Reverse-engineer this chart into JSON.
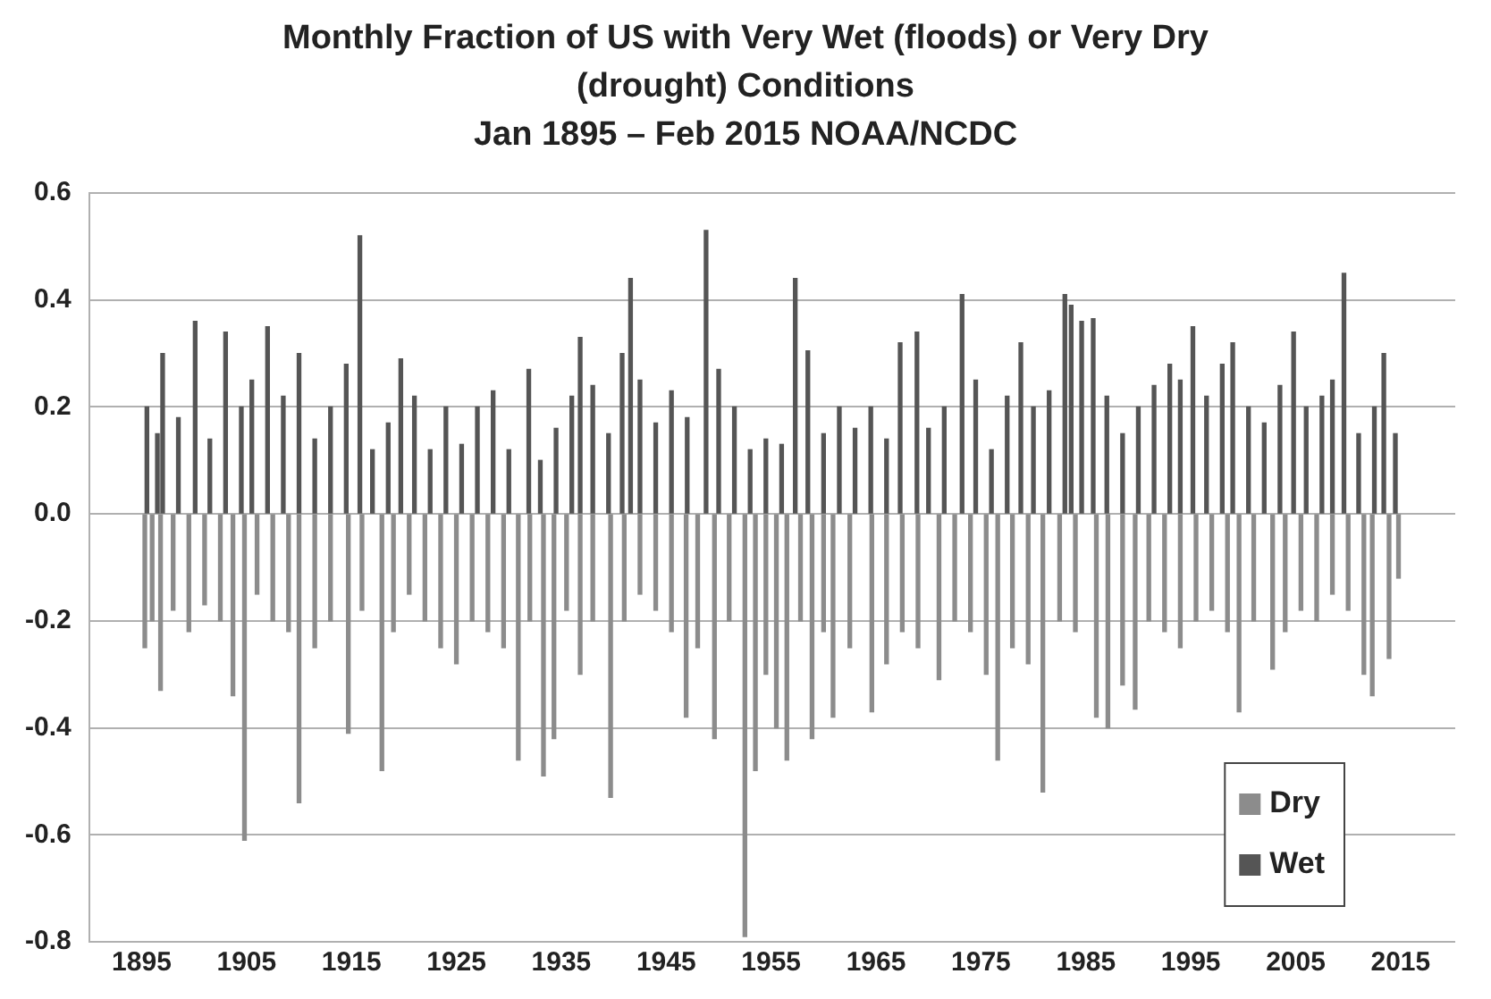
{
  "chart_data": {
    "type": "bar",
    "title": "Monthly Fraction of US with Very Wet (floods) or Very Dry (drought) Conditions",
    "subtitle": "Jan 1895 – Feb 2015 NOAA/NCDC",
    "xlim": [
      1895,
      2015.2
    ],
    "xticks": [
      1895,
      1905,
      1915,
      1925,
      1935,
      1945,
      1955,
      1965,
      1975,
      1985,
      1995,
      2005,
      2015
    ],
    "ylim": [
      -0.8,
      0.6
    ],
    "yticks": [
      {
        "value": -0.8,
        "label": "-0.8"
      },
      {
        "value": -0.6,
        "label": "-0.6"
      },
      {
        "value": -0.4,
        "label": "-0.4"
      },
      {
        "value": -0.2,
        "label": "-0.2"
      },
      {
        "value": 0,
        "label": "0.0"
      },
      {
        "value": 0.2,
        "label": "0.2"
      },
      {
        "value": 0.4,
        "label": "0.4"
      },
      {
        "value": 0.6,
        "label": "0.6"
      }
    ],
    "grid": "y",
    "legend": "bottom right",
    "series": [
      {
        "name": "Dry",
        "color": "#8c8c8c",
        "x": [
          1895.3,
          1896,
          1896.8,
          1898,
          1899.5,
          1901,
          1902.5,
          1903.7,
          1904.8,
          1906,
          1907.5,
          1909,
          1910,
          1911.5,
          1913,
          1914.7,
          1916,
          1917.9,
          1919,
          1920.5,
          1922,
          1923.5,
          1925,
          1926.5,
          1928,
          1929.5,
          1930.9,
          1932,
          1933.3,
          1934.3,
          1935.5,
          1936.8,
          1938,
          1939.7,
          1941,
          1942.5,
          1944,
          1945.5,
          1946.9,
          1948,
          1949.6,
          1951,
          1952.5,
          1953.5,
          1954.5,
          1955.5,
          1956.5,
          1957.8,
          1958.9,
          1960,
          1960.9,
          1962.5,
          1964.6,
          1966,
          1967.5,
          1969,
          1971,
          1972.5,
          1974,
          1975.5,
          1976.6,
          1978,
          1979.5,
          1980.9,
          1982.5,
          1984,
          1986,
          1987.1,
          1988.5,
          1989.7,
          1991,
          1992.5,
          1994,
          1995.5,
          1997,
          1998.5,
          1999.6,
          2001,
          2002.8,
          2004,
          2005.5,
          2007,
          2008.5,
          2010,
          2011.5,
          2012.3,
          2013.9,
          2014.8
        ],
        "values": [
          -0.25,
          -0.2,
          -0.33,
          -0.18,
          -0.22,
          -0.17,
          -0.2,
          -0.34,
          -0.61,
          -0.15,
          -0.2,
          -0.22,
          -0.54,
          -0.25,
          -0.2,
          -0.41,
          -0.18,
          -0.48,
          -0.22,
          -0.15,
          -0.2,
          -0.25,
          -0.28,
          -0.2,
          -0.22,
          -0.25,
          -0.46,
          -0.2,
          -0.49,
          -0.42,
          -0.18,
          -0.3,
          -0.2,
          -0.53,
          -0.2,
          -0.15,
          -0.18,
          -0.22,
          -0.38,
          -0.25,
          -0.42,
          -0.2,
          -0.79,
          -0.48,
          -0.3,
          -0.4,
          -0.46,
          -0.2,
          -0.42,
          -0.22,
          -0.38,
          -0.25,
          -0.37,
          -0.28,
          -0.22,
          -0.25,
          -0.31,
          -0.2,
          -0.22,
          -0.3,
          -0.46,
          -0.25,
          -0.28,
          -0.52,
          -0.2,
          -0.22,
          -0.38,
          -0.4,
          -0.32,
          -0.365,
          -0.2,
          -0.22,
          -0.25,
          -0.2,
          -0.18,
          -0.22,
          -0.37,
          -0.2,
          -0.29,
          -0.22,
          -0.18,
          -0.2,
          -0.15,
          -0.18,
          -0.3,
          -0.34,
          -0.27,
          -0.12
        ]
      },
      {
        "name": "Wet",
        "color": "#555555",
        "x": [
          1895.5,
          1896.5,
          1897,
          1898.5,
          1900.1,
          1901.5,
          1903,
          1904.5,
          1905.5,
          1907,
          1908.5,
          1910,
          1911.5,
          1913,
          1914.5,
          1915.8,
          1917,
          1918.5,
          1919.7,
          1921,
          1922.5,
          1924,
          1925.5,
          1927,
          1928.5,
          1930,
          1931.9,
          1933,
          1934.5,
          1936,
          1936.8,
          1938,
          1939.5,
          1940.8,
          1941.6,
          1942.5,
          1944,
          1945.5,
          1947,
          1948.8,
          1950,
          1951.5,
          1953,
          1954.5,
          1956,
          1957.3,
          1958.5,
          1960,
          1961.5,
          1963,
          1964.5,
          1966,
          1967.3,
          1968.9,
          1970,
          1971.5,
          1973.2,
          1974.5,
          1976,
          1977.5,
          1978.8,
          1980,
          1981.5,
          1983,
          1983.6,
          1984.6,
          1985.7,
          1987,
          1988.5,
          1990,
          1991.5,
          1993,
          1994,
          1995.2,
          1996.5,
          1998,
          1999,
          2000.5,
          2002,
          2003.5,
          2004.8,
          2006,
          2007.5,
          2008.5,
          2009.6,
          2011,
          2012.5,
          2013.4,
          2014.5
        ],
        "values": [
          0.2,
          0.15,
          0.3,
          0.18,
          0.36,
          0.14,
          0.34,
          0.2,
          0.25,
          0.35,
          0.22,
          0.3,
          0.14,
          0.2,
          0.28,
          0.52,
          0.12,
          0.17,
          0.29,
          0.22,
          0.12,
          0.2,
          0.13,
          0.2,
          0.23,
          0.12,
          0.27,
          0.1,
          0.16,
          0.22,
          0.33,
          0.24,
          0.15,
          0.3,
          0.44,
          0.25,
          0.17,
          0.23,
          0.18,
          0.53,
          0.27,
          0.2,
          0.12,
          0.14,
          0.13,
          0.44,
          0.305,
          0.15,
          0.2,
          0.16,
          0.2,
          0.14,
          0.32,
          0.34,
          0.16,
          0.2,
          0.41,
          0.25,
          0.12,
          0.22,
          0.32,
          0.2,
          0.23,
          0.41,
          0.39,
          0.36,
          0.365,
          0.22,
          0.15,
          0.2,
          0.24,
          0.28,
          0.25,
          0.35,
          0.22,
          0.28,
          0.32,
          0.2,
          0.17,
          0.24,
          0.34,
          0.2,
          0.22,
          0.25,
          0.45,
          0.15,
          0.2,
          0.3,
          0.15
        ]
      }
    ]
  }
}
